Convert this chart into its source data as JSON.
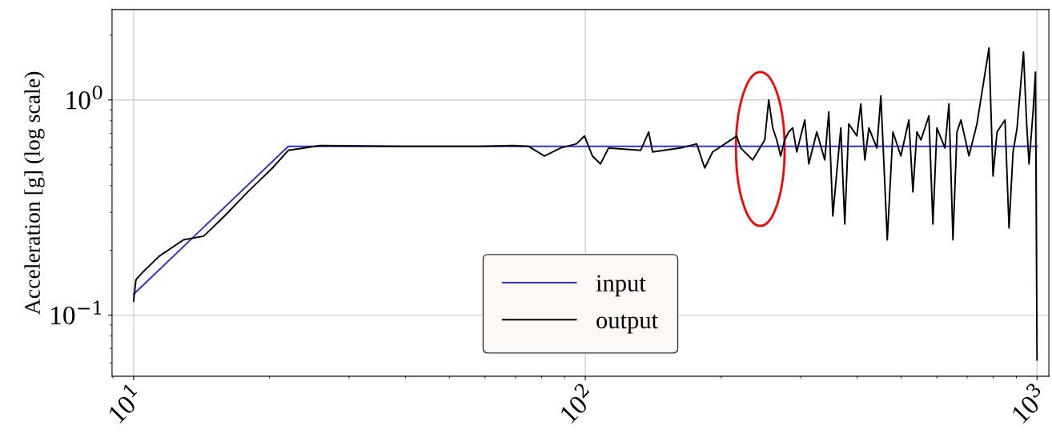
{
  "chart_data": {
    "type": "line",
    "ylabel": "Acceleration [g] (log scale)",
    "log": "xy",
    "xlim": [
      8.96,
      1062
    ],
    "ylim": [
      0.052,
      2.63
    ],
    "xticks": [
      {
        "value": 10,
        "label": "10$^{1}$"
      },
      {
        "value": 100,
        "label": "10$^{2}$"
      },
      {
        "value": 1000,
        "label": "10$^{3}$"
      }
    ],
    "yticks": [
      {
        "value": 0.1,
        "label": "10$^{−1}$"
      },
      {
        "value": 1,
        "label": "10$^{0}$"
      }
    ],
    "grid": true,
    "legend": "bottom",
    "series": [
      {
        "name": "input",
        "color": "#3030d0",
        "x": [
          10,
          22.0,
          1000
        ],
        "values": [
          0.125,
          0.609,
          0.609
        ]
      },
      {
        "name": "output",
        "color": "#000000",
        "x": [
          10,
          10.12,
          10.5,
          11.4,
          12.9,
          14.3,
          15.9,
          17.9,
          20.3,
          22.0,
          23.9,
          25.9,
          38.9,
          58.6,
          69.0,
          74.8,
          81.2,
          88.1,
          95.6,
          99.6,
          103.7,
          108,
          112.6,
          132.6,
          138.1,
          140.9,
          162.5,
          176.4,
          183.8,
          191.4,
          216.3,
          220.8,
          234.7,
          249.6,
          254.7,
          260,
          265.3,
          270.7,
          276.3,
          282,
          287.9,
          293.8,
          299.9,
          306.1,
          312.4,
          325.4,
          338.9,
          345.9,
          353.1,
          367.8,
          375.3,
          383.1,
          399.1,
          407.3,
          415.7,
          424.4,
          442,
          451.1,
          466.1,
          479.7,
          499.5,
          520.3,
          531.1,
          542,
          553.4,
          576.2,
          588.1,
          600.3,
          625.3,
          638.2,
          651.4,
          664.9,
          678.6,
          706.8,
          736.2,
          782.8,
          799,
          815.4,
          849.4,
          866.9,
          884.9,
          903.2,
          933.2,
          948.4,
          960.1,
          979.8,
          992,
          1000
        ],
        "values": [
          0.116,
          0.146,
          0.159,
          0.188,
          0.224,
          0.233,
          0.289,
          0.374,
          0.483,
          0.583,
          0.598,
          0.614,
          0.609,
          0.609,
          0.614,
          0.609,
          0.549,
          0.598,
          0.625,
          0.68,
          0.549,
          0.504,
          0.598,
          0.583,
          0.71,
          0.573,
          0.598,
          0.625,
          0.483,
          0.573,
          0.68,
          0.598,
          0.526,
          0.652,
          1.0,
          0.741,
          0.652,
          0.549,
          0.652,
          0.71,
          0.741,
          0.573,
          0.68,
          0.807,
          0.504,
          0.71,
          0.526,
          0.88,
          0.289,
          0.741,
          0.265,
          0.774,
          0.68,
          0.958,
          0.526,
          0.741,
          0.598,
          1.044,
          0.224,
          0.71,
          0.549,
          0.807,
          0.374,
          0.71,
          0.652,
          0.843,
          0.265,
          0.741,
          0.598,
          0.958,
          0.224,
          0.71,
          0.807,
          0.549,
          0.774,
          1.744,
          0.443,
          0.71,
          0.807,
          0.254,
          0.573,
          0.741,
          1.671,
          0.774,
          0.504,
          0.88,
          1.349,
          0.0619
        ]
      }
    ]
  }
}
